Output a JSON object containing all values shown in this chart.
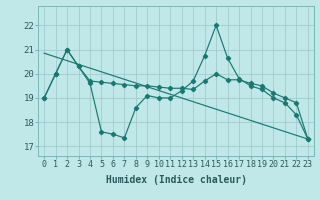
{
  "xlabel": "Humidex (Indice chaleur)",
  "bg_color": "#c0e8e8",
  "grid_color": "#a0cccc",
  "line_color": "#1a7870",
  "x_values": [
    0,
    1,
    2,
    3,
    4,
    5,
    6,
    7,
    8,
    9,
    10,
    11,
    12,
    13,
    14,
    15,
    16,
    17,
    18,
    19,
    20,
    21,
    22,
    23
  ],
  "line1_jagged": [
    19.0,
    20.0,
    21.0,
    20.3,
    19.6,
    17.6,
    17.5,
    17.35,
    18.6,
    19.1,
    19.0,
    19.0,
    19.3,
    19.7,
    20.75,
    22.0,
    20.65,
    19.8,
    19.5,
    19.35,
    19.0,
    18.8,
    18.3,
    17.3
  ],
  "line2_smooth": [
    19.0,
    20.0,
    21.0,
    20.3,
    19.7,
    19.65,
    19.6,
    19.55,
    19.5,
    19.5,
    19.45,
    19.4,
    19.4,
    19.35,
    19.7,
    20.0,
    19.75,
    19.75,
    19.6,
    19.5,
    19.2,
    19.0,
    18.8,
    17.3
  ],
  "trend_line": [
    [
      0,
      20.85
    ],
    [
      23,
      17.3
    ]
  ],
  "ylim": [
    16.6,
    22.8
  ],
  "yticks": [
    17,
    18,
    19,
    20,
    21,
    22
  ],
  "xticks": [
    0,
    1,
    2,
    3,
    4,
    5,
    6,
    7,
    8,
    9,
    10,
    11,
    12,
    13,
    14,
    15,
    16,
    17,
    18,
    19,
    20,
    21,
    22,
    23
  ],
  "xlabel_fontsize": 7,
  "tick_fontsize": 6
}
